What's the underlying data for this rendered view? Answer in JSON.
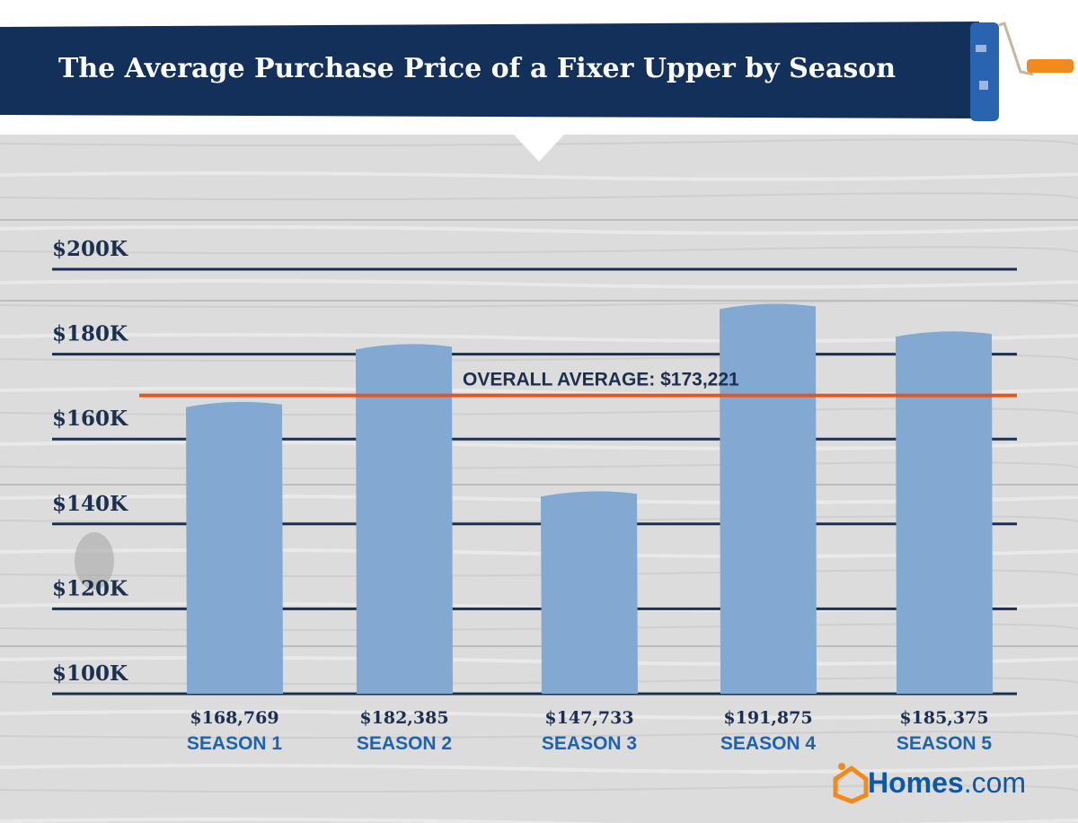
{
  "chart_data": {
    "type": "bar",
    "title": "The Average Purchase Price of a Fixer Upper by Season",
    "categories": [
      "SEASON 1",
      "SEASON 2",
      "SEASON 3",
      "SEASON 4",
      "SEASON 5"
    ],
    "values": [
      168769,
      182385,
      147733,
      191875,
      185375
    ],
    "value_labels": [
      "$168,769",
      "$182,385",
      "$147,733",
      "$191,875",
      "$185,375"
    ],
    "ylim": [
      100000,
      200000
    ],
    "yticks": [
      100000,
      120000,
      140000,
      160000,
      180000,
      200000
    ],
    "ytick_labels": [
      "$100K",
      "$120K",
      "$140K",
      "$160K",
      "$180K",
      "$200K"
    ],
    "reference_line": {
      "label": "OVERALL AVERAGE:  $173,221",
      "value": 173221
    },
    "grid": true,
    "xlabel": "",
    "ylabel": ""
  },
  "brand": {
    "logo_text": "Homes",
    "logo_suffix": ".com"
  },
  "colors": {
    "navy": "#12305a",
    "bar": "#82a9d1",
    "avg": "#e8541c",
    "label": "#1f63ad",
    "orange": "#f08a1c"
  }
}
